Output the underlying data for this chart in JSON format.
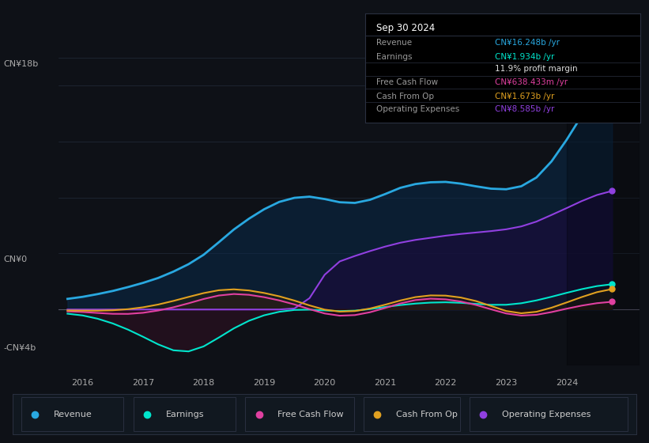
{
  "bg_color": "#0e1117",
  "plot_bg_color": "#0e1117",
  "grid_color": "#232b3a",
  "ylim": [
    -4000000000,
    18000000000
  ],
  "xlim_start": 2015.6,
  "xlim_end": 2025.2,
  "xticks": [
    2016,
    2017,
    2018,
    2019,
    2020,
    2021,
    2022,
    2023,
    2024
  ],
  "legend": [
    {
      "label": "Revenue",
      "color": "#29a8e0"
    },
    {
      "label": "Earnings",
      "color": "#00e5cc"
    },
    {
      "label": "Free Cash Flow",
      "color": "#e040a0"
    },
    {
      "label": "Cash From Op",
      "color": "#e0a020"
    },
    {
      "label": "Operating Expenses",
      "color": "#9040e0"
    }
  ],
  "info_box": {
    "title": "Sep 30 2024",
    "rows": [
      {
        "label": "Revenue",
        "value": "CN¥16.248b /yr",
        "value_color": "#29a8e0"
      },
      {
        "label": "Earnings",
        "value": "CN¥1.934b /yr",
        "value_color": "#00e5cc"
      },
      {
        "label": "",
        "value": "11.9% profit margin",
        "value_color": "#dddddd"
      },
      {
        "label": "Free Cash Flow",
        "value": "CN¥638.433m /yr",
        "value_color": "#e040a0"
      },
      {
        "label": "Cash From Op",
        "value": "CN¥1.673b /yr",
        "value_color": "#e0a020"
      },
      {
        "label": "Operating Expenses",
        "value": "CN¥8.585b /yr",
        "value_color": "#9040e0"
      }
    ]
  },
  "revenue_x": [
    2015.75,
    2016.0,
    2016.25,
    2016.5,
    2016.75,
    2017.0,
    2017.25,
    2017.5,
    2017.75,
    2018.0,
    2018.25,
    2018.5,
    2018.75,
    2019.0,
    2019.25,
    2019.5,
    2019.75,
    2020.0,
    2020.25,
    2020.5,
    2020.75,
    2021.0,
    2021.25,
    2021.5,
    2021.75,
    2022.0,
    2022.25,
    2022.5,
    2022.75,
    2023.0,
    2023.25,
    2023.5,
    2023.75,
    2024.0,
    2024.25,
    2024.5,
    2024.75
  ],
  "revenue_y": [
    700000000,
    900000000,
    1100000000,
    1300000000,
    1600000000,
    1900000000,
    2200000000,
    2700000000,
    3200000000,
    3800000000,
    4800000000,
    5800000000,
    6500000000,
    7200000000,
    7800000000,
    8000000000,
    8200000000,
    7900000000,
    7600000000,
    7500000000,
    7800000000,
    8200000000,
    8800000000,
    9000000000,
    9100000000,
    9200000000,
    9000000000,
    8800000000,
    8600000000,
    8500000000,
    8700000000,
    9200000000,
    10500000000,
    12000000000,
    14000000000,
    15500000000,
    16248000000
  ],
  "opex_x": [
    2015.75,
    2016.0,
    2016.25,
    2016.5,
    2016.75,
    2017.0,
    2017.25,
    2017.5,
    2017.75,
    2018.0,
    2018.25,
    2018.5,
    2018.75,
    2019.0,
    2019.25,
    2019.5,
    2019.75,
    2020.0,
    2020.25,
    2020.5,
    2020.75,
    2021.0,
    2021.25,
    2021.5,
    2021.75,
    2022.0,
    2022.25,
    2022.5,
    2022.75,
    2023.0,
    2023.25,
    2023.5,
    2023.75,
    2024.0,
    2024.25,
    2024.5,
    2024.75
  ],
  "opex_y": [
    0,
    0,
    0,
    0,
    0,
    0,
    0,
    0,
    0,
    0,
    0,
    0,
    0,
    0,
    0,
    0,
    0,
    3200000000,
    3500000000,
    3800000000,
    4200000000,
    4500000000,
    4800000000,
    5000000000,
    5100000000,
    5300000000,
    5400000000,
    5500000000,
    5600000000,
    5700000000,
    5900000000,
    6200000000,
    6800000000,
    7200000000,
    7800000000,
    8200000000,
    8585000000
  ],
  "earnings_x": [
    2015.75,
    2016.0,
    2016.25,
    2016.5,
    2016.75,
    2017.0,
    2017.25,
    2017.5,
    2017.75,
    2018.0,
    2018.25,
    2018.5,
    2018.75,
    2019.0,
    2019.25,
    2019.5,
    2019.75,
    2020.0,
    2020.25,
    2020.5,
    2020.75,
    2021.0,
    2021.25,
    2021.5,
    2021.75,
    2022.0,
    2022.25,
    2022.5,
    2022.75,
    2023.0,
    2023.25,
    2023.5,
    2023.75,
    2024.0,
    2024.25,
    2024.5,
    2024.75
  ],
  "earnings_y": [
    -200000000,
    -350000000,
    -600000000,
    -900000000,
    -1400000000,
    -1900000000,
    -2500000000,
    -3200000000,
    -3500000000,
    -2800000000,
    -2000000000,
    -1200000000,
    -700000000,
    -300000000,
    -100000000,
    50000000,
    100000000,
    -100000000,
    -200000000,
    -150000000,
    0,
    200000000,
    350000000,
    450000000,
    500000000,
    600000000,
    500000000,
    400000000,
    300000000,
    200000000,
    400000000,
    600000000,
    900000000,
    1200000000,
    1500000000,
    1700000000,
    1934000000
  ],
  "fcf_x": [
    2015.75,
    2016.0,
    2016.25,
    2016.5,
    2016.75,
    2017.0,
    2017.25,
    2017.5,
    2017.75,
    2018.0,
    2018.25,
    2018.5,
    2018.75,
    2019.0,
    2019.25,
    2019.5,
    2019.75,
    2020.0,
    2020.25,
    2020.5,
    2020.75,
    2021.0,
    2021.25,
    2021.5,
    2021.75,
    2022.0,
    2022.25,
    2022.5,
    2022.75,
    2023.0,
    2023.25,
    2023.5,
    2023.75,
    2024.0,
    2024.25,
    2024.5,
    2024.75
  ],
  "fcf_y": [
    -100000000,
    -150000000,
    -250000000,
    -350000000,
    -400000000,
    -300000000,
    -100000000,
    100000000,
    400000000,
    800000000,
    1100000000,
    1300000000,
    1100000000,
    900000000,
    700000000,
    400000000,
    100000000,
    -500000000,
    -600000000,
    -500000000,
    -300000000,
    100000000,
    500000000,
    800000000,
    900000000,
    800000000,
    600000000,
    400000000,
    100000000,
    -500000000,
    -600000000,
    -500000000,
    -200000000,
    100000000,
    300000000,
    500000000,
    638000000
  ],
  "cfo_x": [
    2015.75,
    2016.0,
    2016.25,
    2016.5,
    2016.75,
    2017.0,
    2017.25,
    2017.5,
    2017.75,
    2018.0,
    2018.25,
    2018.5,
    2018.75,
    2019.0,
    2019.25,
    2019.5,
    2019.75,
    2020.0,
    2020.25,
    2020.5,
    2020.75,
    2021.0,
    2021.25,
    2021.5,
    2021.75,
    2022.0,
    2022.25,
    2022.5,
    2022.75,
    2023.0,
    2023.25,
    2023.5,
    2023.75,
    2024.0,
    2024.25,
    2024.5,
    2024.75
  ],
  "cfo_y": [
    -50000000,
    -80000000,
    -120000000,
    -100000000,
    0,
    100000000,
    300000000,
    600000000,
    900000000,
    1200000000,
    1500000000,
    1600000000,
    1400000000,
    1200000000,
    1000000000,
    700000000,
    300000000,
    -200000000,
    -300000000,
    -200000000,
    0,
    300000000,
    700000000,
    1000000000,
    1100000000,
    1100000000,
    900000000,
    700000000,
    400000000,
    -400000000,
    -500000000,
    -300000000,
    100000000,
    500000000,
    900000000,
    1300000000,
    1673000000
  ]
}
